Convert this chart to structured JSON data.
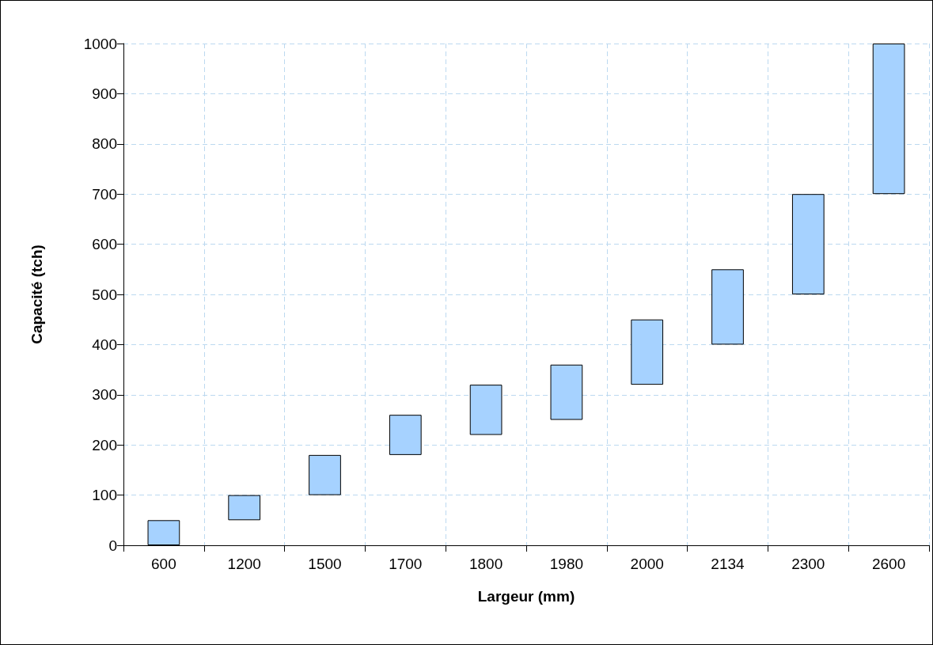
{
  "chart_data": {
    "type": "bar",
    "xlabel": "Largeur (mm)",
    "ylabel": "Capacité (tch)",
    "categories": [
      "600",
      "1200",
      "1500",
      "1700",
      "1800",
      "1980",
      "2000",
      "2134",
      "2300",
      "2600"
    ],
    "base": [
      0,
      50,
      100,
      180,
      220,
      250,
      320,
      400,
      500,
      700
    ],
    "values": [
      50,
      50,
      80,
      80,
      100,
      110,
      130,
      150,
      200,
      300
    ],
    "color": "#a6d2ff",
    "ylim": [
      0,
      1000
    ],
    "yticks": [
      0,
      100,
      200,
      300,
      400,
      500,
      600,
      700,
      800,
      900,
      1000
    ],
    "grid": true
  }
}
